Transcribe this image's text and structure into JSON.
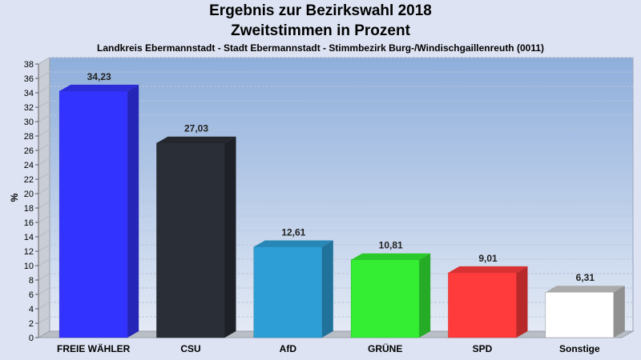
{
  "header": {
    "title": "Ergebnis zur Bezirkswahl 2018",
    "subtitle": "Zweitstimmen in Prozent",
    "location": "Landkreis Ebermannstadt - Stadt Ebermannstadt - Stimmbezirk Burg-/Windischgaillenreuth (0011)"
  },
  "chart_data": {
    "type": "bar",
    "title": "Ergebnis zur Bezirkswahl 2018",
    "subtitle": "Zweitstimmen in Prozent",
    "xlabel": "",
    "ylabel": "%",
    "ylim": [
      0,
      38
    ],
    "yticks": [
      0,
      2,
      4,
      6,
      8,
      10,
      12,
      14,
      16,
      18,
      20,
      22,
      24,
      26,
      28,
      30,
      32,
      34,
      36,
      38
    ],
    "grid": true,
    "categories": [
      "FREIE WÄHLER",
      "CSU",
      "AfD",
      "GRÜNE",
      "SPD",
      "Sonstige"
    ],
    "values": [
      34.23,
      27.03,
      12.61,
      10.81,
      9.01,
      6.31
    ],
    "value_labels": [
      "34,23",
      "27,03",
      "12,61",
      "10,81",
      "9,01",
      "6,31"
    ],
    "colors": [
      "#3333ff",
      "#2a2e36",
      "#2e9fd6",
      "#33ee33",
      "#ff3b3b",
      "#ffffff"
    ]
  }
}
